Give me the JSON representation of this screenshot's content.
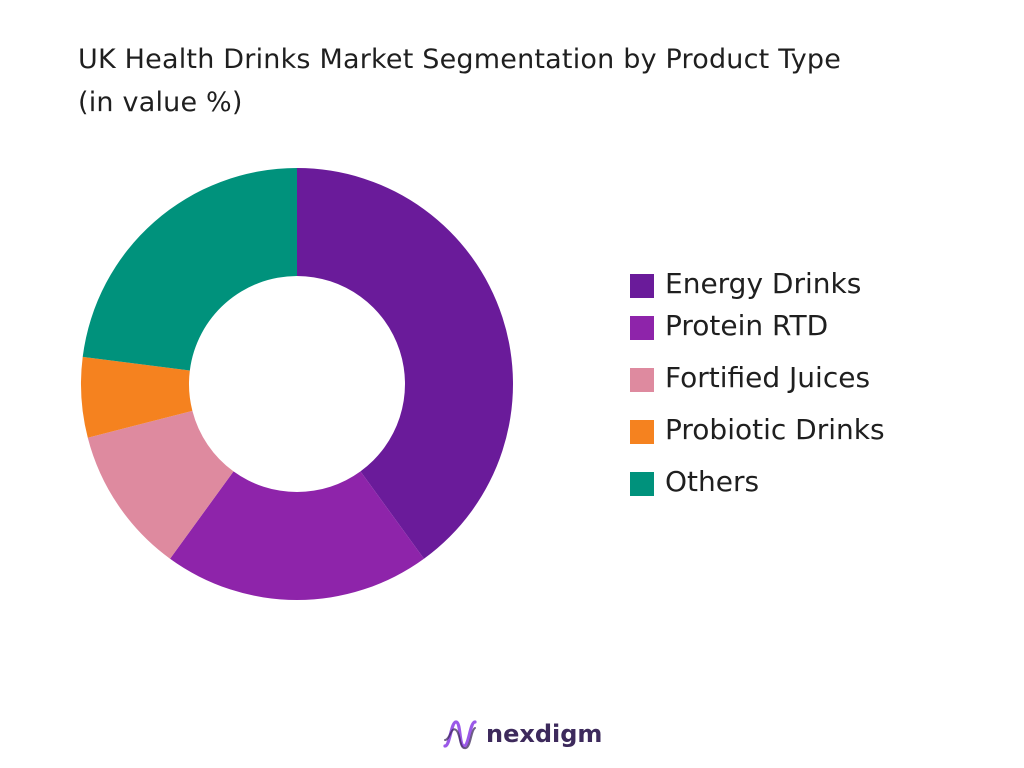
{
  "chart_data": {
    "type": "pie",
    "title": "UK Health Drinks Market Segmentation by Product Type",
    "subtitle": "(in value %)",
    "donut": true,
    "legend_position": "right",
    "series": [
      {
        "name": "Energy Drinks",
        "value": 40,
        "color": "#6a1b9a"
      },
      {
        "name": "Protein RTD",
        "value": 20,
        "color": "#8e24aa"
      },
      {
        "name": "Fortified Juices",
        "value": 11,
        "color": "#de8a9f"
      },
      {
        "name": "Probiotic Drinks",
        "value": 6,
        "color": "#f5821f"
      },
      {
        "name": "Others",
        "value": 23,
        "color": "#00927c"
      }
    ]
  },
  "brand": {
    "name": "nexdigm",
    "logo_icon": "nexdigm-wave-icon",
    "color": "#3d2a5c",
    "logo_colors": [
      "#9b59e8",
      "#3d2a5c"
    ]
  }
}
